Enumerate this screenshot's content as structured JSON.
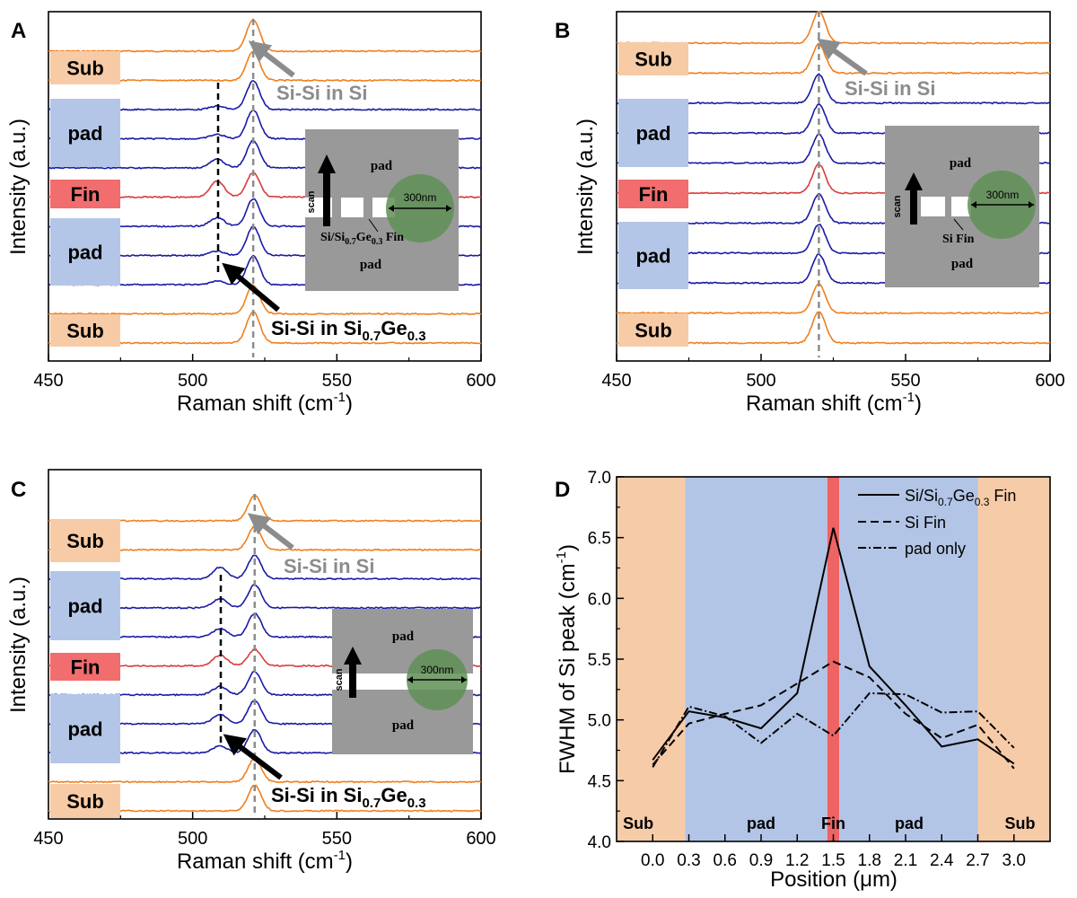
{
  "panels": [
    {
      "id": "A",
      "letter": "A",
      "chart_data": {
        "type": "line",
        "xlabel": "Raman shift (cm",
        "xlabel_sup": "-1",
        "xlabel_end": ")",
        "ylabel": "Intensity (a.u.)",
        "xlim": [
          450,
          600
        ],
        "xticks": [
          450,
          500,
          550,
          600
        ],
        "si_peak_position": 521,
        "sige_peak_position": 508.5,
        "series": [
          {
            "name": "Sub 1",
            "color": "#f07f1d",
            "region": "Sub",
            "si_amp": 1.1,
            "sige_amp": 0
          },
          {
            "name": "Sub 2",
            "color": "#f07f1d",
            "region": "Sub",
            "si_amp": 1.0,
            "sige_amp": 0
          },
          {
            "name": "pad 1",
            "color": "#1a1aa6",
            "region": "pad",
            "si_amp": 1.0,
            "sige_amp": 0.12
          },
          {
            "name": "pad 2",
            "color": "#1a1aa6",
            "region": "pad",
            "si_amp": 1.0,
            "sige_amp": 0.15
          },
          {
            "name": "pad 3",
            "color": "#1a1aa6",
            "region": "pad",
            "si_amp": 0.95,
            "sige_amp": 0.3
          },
          {
            "name": "Fin",
            "color": "#d93b3b",
            "region": "Fin",
            "si_amp": 0.85,
            "sige_amp": 0.55
          },
          {
            "name": "pad 4",
            "color": "#1a1aa6",
            "region": "pad",
            "si_amp": 0.95,
            "sige_amp": 0.3
          },
          {
            "name": "pad 5",
            "color": "#1a1aa6",
            "region": "pad",
            "si_amp": 1.0,
            "sige_amp": 0.15
          },
          {
            "name": "pad 6",
            "color": "#1a1aa6",
            "region": "pad",
            "si_amp": 1.0,
            "sige_amp": 0.12
          },
          {
            "name": "Sub 3",
            "color": "#f07f1d",
            "region": "Sub",
            "si_amp": 1.0,
            "sige_amp": 0
          },
          {
            "name": "Sub 4",
            "color": "#f07f1d",
            "region": "Sub",
            "si_amp": 1.1,
            "sige_amp": 0
          }
        ],
        "region_labels": [
          "Sub",
          "pad",
          "Fin",
          "pad",
          "Sub"
        ],
        "annotations": {
          "si_label": "Si-Si in Si",
          "sige_label_prefix": "Si-Si in Si",
          "sige_sub1": "0.7",
          "sige_mid": "Ge",
          "sige_sub2": "0.3"
        },
        "inset": {
          "top": "pad",
          "bottom": "pad",
          "scan": "scan",
          "spot": "300nm",
          "fin_label_prefix": "Si/Si",
          "fin_sub1": "0.7",
          "fin_mid": "Ge",
          "fin_sub2": "0.3",
          "fin_label_end": " Fin"
        }
      }
    },
    {
      "id": "B",
      "letter": "B",
      "chart_data": {
        "type": "line",
        "xlabel": "Raman shift (cm",
        "xlabel_sup": "-1",
        "xlabel_end": ")",
        "ylabel": "Intensity (a.u.)",
        "xlim": [
          450,
          600
        ],
        "xticks": [
          450,
          500,
          550,
          600
        ],
        "si_peak_position": 520,
        "series": [
          {
            "name": "Sub 1",
            "color": "#f07f1d",
            "region": "Sub",
            "si_amp": 1.1,
            "sige_amp": 0
          },
          {
            "name": "Sub 2",
            "color": "#f07f1d",
            "region": "Sub",
            "si_amp": 1.0,
            "sige_amp": 0
          },
          {
            "name": "pad 1",
            "color": "#1a1aa6",
            "region": "pad",
            "si_amp": 1.0,
            "sige_amp": 0
          },
          {
            "name": "pad 2",
            "color": "#1a1aa6",
            "region": "pad",
            "si_amp": 1.0,
            "sige_amp": 0
          },
          {
            "name": "pad 3",
            "color": "#1a1aa6",
            "region": "pad",
            "si_amp": 1.0,
            "sige_amp": 0
          },
          {
            "name": "Fin",
            "color": "#d93b3b",
            "region": "Fin",
            "si_amp": 1.0,
            "sige_amp": 0
          },
          {
            "name": "pad 4",
            "color": "#1a1aa6",
            "region": "pad",
            "si_amp": 1.0,
            "sige_amp": 0
          },
          {
            "name": "pad 5",
            "color": "#1a1aa6",
            "region": "pad",
            "si_amp": 1.0,
            "sige_amp": 0
          },
          {
            "name": "pad 6",
            "color": "#1a1aa6",
            "region": "pad",
            "si_amp": 1.0,
            "sige_amp": 0
          },
          {
            "name": "Sub 3",
            "color": "#f07f1d",
            "region": "Sub",
            "si_amp": 1.0,
            "sige_amp": 0
          },
          {
            "name": "Sub 4",
            "color": "#f07f1d",
            "region": "Sub",
            "si_amp": 1.1,
            "sige_amp": 0
          }
        ],
        "region_labels": [
          "Sub",
          "pad",
          "Fin",
          "pad",
          "Sub"
        ],
        "annotations": {
          "si_label": "Si-Si in Si"
        },
        "inset": {
          "top": "pad",
          "bottom": "pad",
          "scan": "scan",
          "spot": "300nm",
          "fin_label": "Si Fin"
        }
      }
    },
    {
      "id": "C",
      "letter": "C",
      "chart_data": {
        "type": "line",
        "xlabel": "Raman shift (cm",
        "xlabel_sup": "-1",
        "xlabel_end": ")",
        "ylabel": "Intensity (a.u.)",
        "xlim": [
          450,
          600
        ],
        "xticks": [
          450,
          500,
          550,
          600
        ],
        "si_peak_position": 521.5,
        "sige_peak_position": 509.5,
        "series": [
          {
            "name": "Sub 1",
            "color": "#f07f1d",
            "region": "Sub",
            "si_amp": 1.1,
            "sige_amp": 0
          },
          {
            "name": "Sub 2",
            "color": "#f07f1d",
            "region": "Sub",
            "si_amp": 1.0,
            "sige_amp": 0
          },
          {
            "name": "pad 1",
            "color": "#1a1aa6",
            "region": "pad",
            "si_amp": 1.0,
            "sige_amp": 0.5
          },
          {
            "name": "pad 2",
            "color": "#1a1aa6",
            "region": "pad",
            "si_amp": 1.0,
            "sige_amp": 0.4
          },
          {
            "name": "pad 3",
            "color": "#1a1aa6",
            "region": "pad",
            "si_amp": 1.0,
            "sige_amp": 0.35
          },
          {
            "name": "Fin",
            "color": "#d93b3b",
            "region": "Fin",
            "si_amp": 0.7,
            "sige_amp": 0.45
          },
          {
            "name": "pad 4",
            "color": "#1a1aa6",
            "region": "pad",
            "si_amp": 1.0,
            "sige_amp": 0.35
          },
          {
            "name": "pad 5",
            "color": "#1a1aa6",
            "region": "pad",
            "si_amp": 1.0,
            "sige_amp": 0.4
          },
          {
            "name": "pad 6",
            "color": "#1a1aa6",
            "region": "pad",
            "si_amp": 1.0,
            "sige_amp": 0.3
          },
          {
            "name": "Sub 3",
            "color": "#f07f1d",
            "region": "Sub",
            "si_amp": 1.0,
            "sige_amp": 0
          },
          {
            "name": "Sub 4",
            "color": "#f07f1d",
            "region": "Sub",
            "si_amp": 1.1,
            "sige_amp": 0
          }
        ],
        "region_labels": [
          "Sub",
          "pad",
          "Fin",
          "pad",
          "Sub"
        ],
        "annotations": {
          "si_label": "Si-Si in Si",
          "sige_label_prefix": "Si-Si in Si",
          "sige_sub1": "0.7",
          "sige_mid": "Ge",
          "sige_sub2": "0.3"
        },
        "inset": {
          "top": "pad",
          "bottom": "pad",
          "scan": "scan",
          "spot": "300nm"
        }
      }
    },
    {
      "id": "D",
      "letter": "D",
      "chart_data": {
        "type": "line",
        "xlabel_prefix": "Position (",
        "xlabel_mu": "μ",
        "xlabel_end": "m)",
        "ylabel_prefix": "FWHM of Si peak (cm",
        "ylabel_sup": "-1",
        "ylabel_end": ")",
        "xlim": [
          -0.3,
          3.3
        ],
        "ylim": [
          4.0,
          7.0
        ],
        "xticks": [
          0.0,
          0.3,
          0.6,
          0.9,
          1.2,
          1.5,
          1.8,
          2.1,
          2.4,
          2.7,
          3.0
        ],
        "xtick_labels": [
          "0.0",
          "0.3",
          "0.6",
          "0.9",
          "1.2",
          "1.5",
          "1.8",
          "2.1",
          "2.4",
          "2.7",
          "3.0"
        ],
        "yticks": [
          4.0,
          4.5,
          5.0,
          5.5,
          6.0,
          6.5,
          7.0
        ],
        "ytick_labels": [
          "4.0",
          "4.5",
          "5.0",
          "5.5",
          "6.0",
          "6.5",
          "7.0"
        ],
        "regions": [
          {
            "label": "Sub",
            "from": -0.3,
            "to": 0.27,
            "color": "#f6cba8"
          },
          {
            "label": "pad",
            "from": 0.27,
            "to": 1.45,
            "color": "#b3c5e6"
          },
          {
            "label": "Fin",
            "from": 1.45,
            "to": 1.55,
            "color": "#ee6363"
          },
          {
            "label": "pad",
            "from": 1.55,
            "to": 2.7,
            "color": "#b3c5e6"
          },
          {
            "label": "Sub",
            "from": 2.7,
            "to": 3.3,
            "color": "#f6cba8"
          }
        ],
        "region_label_x": [
          -0.12,
          0.9,
          1.5,
          2.13,
          3.05
        ],
        "x": [
          0.0,
          0.3,
          0.6,
          0.9,
          1.2,
          1.5,
          1.8,
          2.1,
          2.4,
          2.7,
          3.0
        ],
        "series": [
          {
            "name_prefix": "Si/Si",
            "name_sub1": "0.7",
            "name_mid": "Ge",
            "name_sub2": "0.3",
            "name_end": " Fin",
            "dash": "solid",
            "values": [
              4.67,
              5.07,
              5.02,
              4.93,
              5.22,
              6.58,
              5.44,
              5.12,
              4.78,
              4.84,
              4.64
            ]
          },
          {
            "name": "Si Fin",
            "dash": "dashed",
            "values": [
              4.63,
              4.97,
              5.05,
              5.12,
              5.3,
              5.48,
              5.35,
              5.05,
              4.85,
              4.96,
              4.6
            ]
          },
          {
            "name": "pad only",
            "dash": "dashdot",
            "values": [
              4.61,
              5.11,
              5.03,
              4.81,
              5.05,
              4.87,
              5.22,
              5.21,
              5.06,
              5.07,
              4.77
            ]
          }
        ]
      }
    }
  ]
}
